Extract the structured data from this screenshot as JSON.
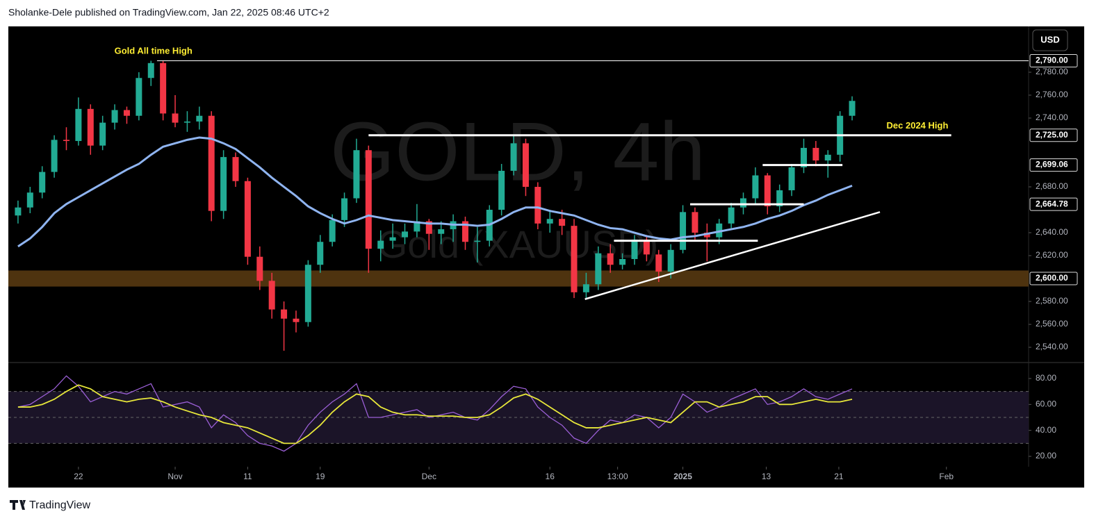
{
  "header": "Sholanke-Dele published on TradingView.com, Jan 22, 2025 08:46 UTC+2",
  "footer": "TradingView",
  "currency": "USD",
  "chart_data": [
    {
      "type": "candlestick",
      "watermark": "GOLD, 4h",
      "watermark_sub": "Gold (XAUUSD)",
      "up_color": "#22ab94",
      "down_color": "#f23645",
      "xlim": [
        -0.8,
        83.6
      ],
      "ylim": [
        2526.7,
        2820
      ],
      "yticks": [
        {
          "value": 2540,
          "label": "2,540.00"
        },
        {
          "value": 2560,
          "label": "2,560.00"
        },
        {
          "value": 2580,
          "label": "2,580.00"
        },
        {
          "value": 2620,
          "label": "2,620.00"
        },
        {
          "value": 2640,
          "label": "2,640.00"
        },
        {
          "value": 2680,
          "label": "2,680.00"
        },
        {
          "value": 2740,
          "label": "2,740.00"
        },
        {
          "value": 2760,
          "label": "2,760.00"
        },
        {
          "value": 2780,
          "label": "2,780.00"
        }
      ],
      "levels": [
        {
          "value": 2790,
          "label": "2,790.00"
        },
        {
          "value": 2725,
          "label": "2,725.00"
        },
        {
          "value": 2699.06,
          "label": "2,699.06"
        },
        {
          "value": 2664.78,
          "label": "2,664.78"
        },
        {
          "value": 2600,
          "label": "2,600.00"
        }
      ],
      "open": [
        2655,
        2662,
        2675,
        2693,
        2721,
        2720,
        2748,
        2716,
        2736,
        2747,
        2742,
        2775,
        2788,
        2744,
        2736,
        2737,
        2742,
        2659,
        2706,
        2685,
        2619,
        2598,
        2573,
        2565,
        2562,
        2612,
        2632,
        2651,
        2670,
        2712,
        2626,
        2633,
        2636,
        2641,
        2650,
        2639,
        2643,
        2650,
        2632,
        2633,
        2660,
        2694,
        2718,
        2680,
        2648,
        2652,
        2646,
        2588,
        2595,
        2622,
        2612,
        2617,
        2634,
        2621,
        2606,
        2625,
        2658,
        2640,
        2636,
        2648,
        2662,
        2670,
        2690,
        2663,
        2677,
        2697,
        2714,
        2703,
        2708,
        2742
      ],
      "high": [
        2668,
        2680,
        2698,
        2725,
        2732,
        2758,
        2752,
        2742,
        2752,
        2750,
        2780,
        2790,
        2790,
        2760,
        2746,
        2750,
        2746,
        2712,
        2710,
        2688,
        2628,
        2605,
        2580,
        2572,
        2616,
        2638,
        2656,
        2675,
        2722,
        2716,
        2642,
        2648,
        2648,
        2665,
        2652,
        2650,
        2656,
        2654,
        2645,
        2664,
        2700,
        2725,
        2722,
        2684,
        2660,
        2660,
        2652,
        2605,
        2628,
        2630,
        2622,
        2638,
        2638,
        2625,
        2630,
        2664,
        2662,
        2648,
        2652,
        2666,
        2675,
        2697,
        2692,
        2682,
        2700,
        2722,
        2720,
        2712,
        2746,
        2759
      ],
      "low": [
        2648,
        2657,
        2670,
        2688,
        2712,
        2716,
        2708,
        2712,
        2730,
        2735,
        2738,
        2768,
        2738,
        2732,
        2728,
        2730,
        2650,
        2652,
        2680,
        2612,
        2590,
        2565,
        2537,
        2553,
        2558,
        2605,
        2628,
        2645,
        2666,
        2605,
        2615,
        2626,
        2630,
        2636,
        2625,
        2630,
        2632,
        2625,
        2614,
        2628,
        2655,
        2690,
        2672,
        2643,
        2640,
        2638,
        2583,
        2583,
        2590,
        2605,
        2608,
        2612,
        2615,
        2597,
        2600,
        2622,
        2634,
        2615,
        2630,
        2644,
        2656,
        2664,
        2656,
        2658,
        2672,
        2692,
        2698,
        2688,
        2702,
        2738
      ],
      "close": [
        2662,
        2675,
        2693,
        2721,
        2720,
        2748,
        2716,
        2736,
        2747,
        2742,
        2775,
        2788,
        2744,
        2736,
        2737,
        2742,
        2659,
        2706,
        2685,
        2619,
        2598,
        2573,
        2565,
        2562,
        2612,
        2632,
        2651,
        2670,
        2712,
        2626,
        2633,
        2636,
        2641,
        2650,
        2639,
        2643,
        2650,
        2632,
        2633,
        2660,
        2694,
        2718,
        2680,
        2648,
        2652,
        2646,
        2588,
        2595,
        2622,
        2612,
        2617,
        2634,
        2621,
        2606,
        2625,
        2658,
        2640,
        2636,
        2648,
        2662,
        2670,
        2690,
        2663,
        2677,
        2697,
        2714,
        2703,
        2708,
        2742,
        2755
      ],
      "ma": {
        "color": "#8fb4f0",
        "values": [
          2628,
          2635,
          2645,
          2657,
          2665,
          2671,
          2677,
          2683,
          2689,
          2695,
          2700,
          2708,
          2715,
          2718,
          2721,
          2723,
          2722,
          2718,
          2713,
          2705,
          2697,
          2688,
          2680,
          2672,
          2663,
          2657,
          2652,
          2648,
          2651,
          2655,
          2653,
          2651,
          2650,
          2649,
          2648,
          2648,
          2647,
          2647,
          2646,
          2647,
          2652,
          2658,
          2662,
          2662,
          2659,
          2657,
          2655,
          2651,
          2647,
          2644,
          2643,
          2640,
          2637,
          2635,
          2634,
          2636,
          2637,
          2639,
          2641,
          2643,
          2645,
          2648,
          2652,
          2655,
          2659,
          2664,
          2668,
          2673,
          2677,
          2681
        ]
      },
      "zone": {
        "color": "#5c3c12",
        "range": [
          2593,
          2607
        ]
      },
      "lines": [
        {
          "value": 2790,
          "x": [
            11.5,
            83.6
          ],
          "width": 1
        },
        {
          "value": 2725,
          "x": [
            29,
            77.2
          ],
          "width": 3
        },
        {
          "value": 2699.06,
          "x": [
            61.6,
            68.2
          ],
          "width": 3
        },
        {
          "value": 2664.78,
          "x": [
            55.6,
            65
          ],
          "width": 3
        },
        {
          "value": 2633,
          "x": [
            49.3,
            61.2
          ],
          "width": 3
        }
      ],
      "trend": [
        [
          46.9,
          2582
        ],
        [
          71.3,
          2658
        ]
      ],
      "annotations": [
        {
          "text": "Gold All time High",
          "x": 11.2,
          "y": 2798,
          "color": "#ffee33"
        },
        {
          "text": "Dec 2024 High",
          "x": 74.4,
          "y": 2733,
          "color": "#ffee33"
        }
      ]
    },
    {
      "type": "line",
      "xlim": [
        -0.8,
        83.6
      ],
      "ylim": [
        12,
        92.3
      ],
      "yticks": [
        {
          "value": 20,
          "label": "20.00"
        },
        {
          "value": 40,
          "label": "40.00"
        },
        {
          "value": 60,
          "label": "60.00"
        },
        {
          "value": 80,
          "label": "80.00"
        }
      ],
      "bands": [
        30,
        50,
        70
      ],
      "band_fill": "#1b1428",
      "xticks": [
        {
          "value": 5,
          "label": "22"
        },
        {
          "value": 13,
          "label": "Nov"
        },
        {
          "value": 19,
          "label": "11"
        },
        {
          "value": 25,
          "label": "19"
        },
        {
          "value": 34,
          "label": "Dec"
        },
        {
          "value": 44,
          "label": "16"
        },
        {
          "value": 49.6,
          "label": "13:00"
        },
        {
          "value": 55,
          "label": "2025"
        },
        {
          "value": 61.9,
          "label": "13"
        },
        {
          "value": 67.9,
          "label": "21"
        },
        {
          "value": 76.8,
          "label": "Feb"
        }
      ],
      "series": [
        {
          "color": "#9b5fd6",
          "values": [
            58,
            60,
            66,
            72,
            82,
            74,
            62,
            66,
            70,
            68,
            72,
            76,
            58,
            60,
            62,
            58,
            42,
            52,
            46,
            36,
            30,
            28,
            24,
            30,
            44,
            54,
            62,
            68,
            76,
            50,
            50,
            52,
            54,
            56,
            50,
            52,
            54,
            50,
            48,
            56,
            66,
            74,
            72,
            58,
            50,
            44,
            34,
            30,
            40,
            48,
            46,
            52,
            50,
            42,
            50,
            68,
            62,
            54,
            58,
            64,
            68,
            72,
            60,
            62,
            66,
            72,
            66,
            64,
            68,
            72
          ]
        },
        {
          "color": "#e8e83a",
          "values": [
            58,
            58,
            60,
            64,
            70,
            75,
            72,
            66,
            64,
            62,
            64,
            65,
            62,
            58,
            55,
            52,
            50,
            46,
            44,
            42,
            38,
            34,
            30,
            30,
            36,
            44,
            54,
            62,
            68,
            66,
            58,
            54,
            52,
            52,
            51,
            51,
            51,
            50,
            50,
            52,
            58,
            65,
            68,
            64,
            58,
            52,
            46,
            42,
            42,
            44,
            46,
            48,
            50,
            48,
            46,
            54,
            62,
            62,
            58,
            60,
            62,
            66,
            66,
            60,
            60,
            62,
            64,
            62,
            62,
            64
          ]
        }
      ]
    }
  ]
}
